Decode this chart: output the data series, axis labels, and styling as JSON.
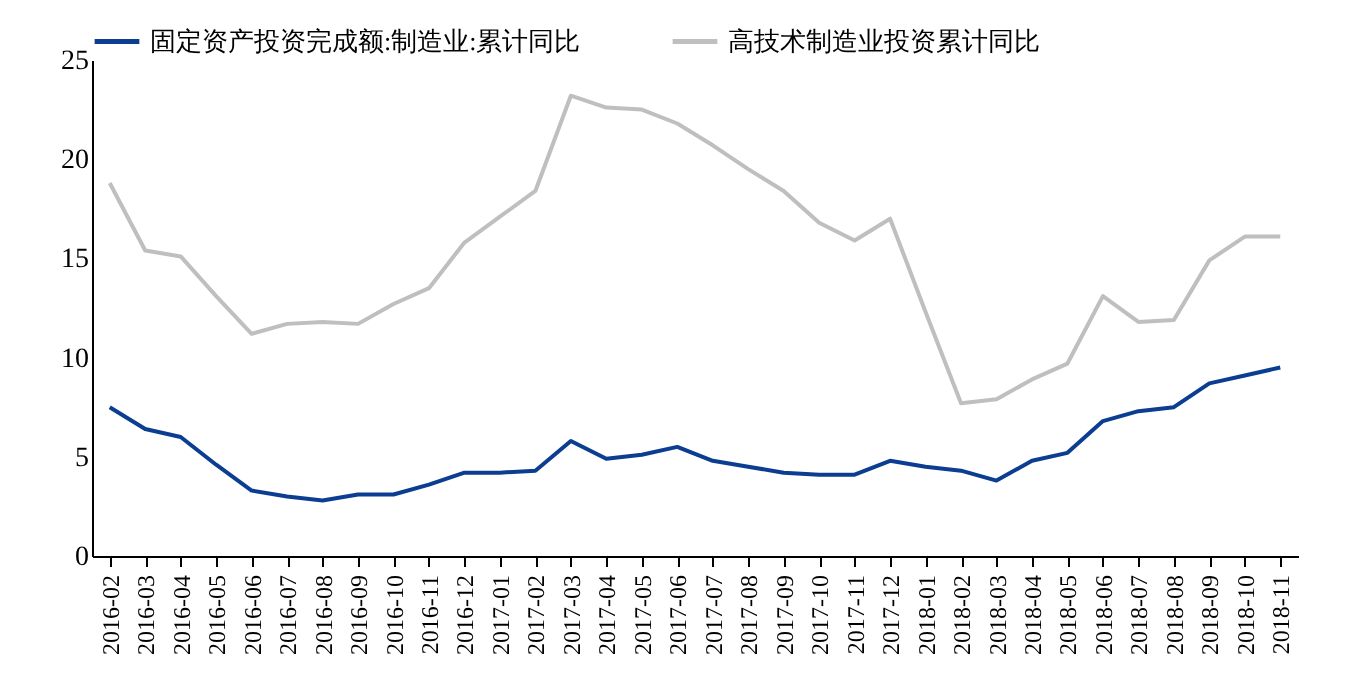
{
  "chart_data": {
    "type": "line",
    "categories": [
      "2016-02",
      "2016-03",
      "2016-04",
      "2016-05",
      "2016-06",
      "2016-07",
      "2016-08",
      "2016-09",
      "2016-10",
      "2016-11",
      "2016-12",
      "2017-01",
      "2017-02",
      "2017-03",
      "2017-04",
      "2017-05",
      "2017-06",
      "2017-07",
      "2017-08",
      "2017-09",
      "2017-10",
      "2017-11",
      "2017-12",
      "2018-01",
      "2018-02",
      "2018-03",
      "2018-04",
      "2018-05",
      "2018-06",
      "2018-07",
      "2018-08",
      "2018-09",
      "2018-10",
      "2018-11"
    ],
    "series": [
      {
        "name": "固定资产投资完成额:制造业:累计同比",
        "color": "#0b3d91",
        "values": [
          7.5,
          6.4,
          6.0,
          4.6,
          3.3,
          3.0,
          2.8,
          3.1,
          3.1,
          3.6,
          4.2,
          4.2,
          4.3,
          5.8,
          4.9,
          5.1,
          5.5,
          4.8,
          4.5,
          4.2,
          4.1,
          4.1,
          4.8,
          4.5,
          4.3,
          3.8,
          4.8,
          5.2,
          6.8,
          7.3,
          7.5,
          8.7,
          9.1,
          9.5
        ]
      },
      {
        "name": "高技术制造业投资累计同比",
        "color": "#bfbfbf",
        "values": [
          18.8,
          15.4,
          15.1,
          13.1,
          11.2,
          11.7,
          11.8,
          11.7,
          12.7,
          13.5,
          15.8,
          17.1,
          18.4,
          23.2,
          22.6,
          22.5,
          21.8,
          20.7,
          19.5,
          18.4,
          16.8,
          15.9,
          17.0,
          12.3,
          7.7,
          7.9,
          8.9,
          9.7,
          13.1,
          11.8,
          11.9,
          14.9,
          16.1,
          16.1
        ]
      }
    ],
    "ylim": [
      0,
      25
    ],
    "yticks": [
      0,
      5,
      10,
      15,
      20,
      25
    ],
    "grid": false,
    "legend": "top",
    "marker": "none",
    "line_style": "solid"
  }
}
